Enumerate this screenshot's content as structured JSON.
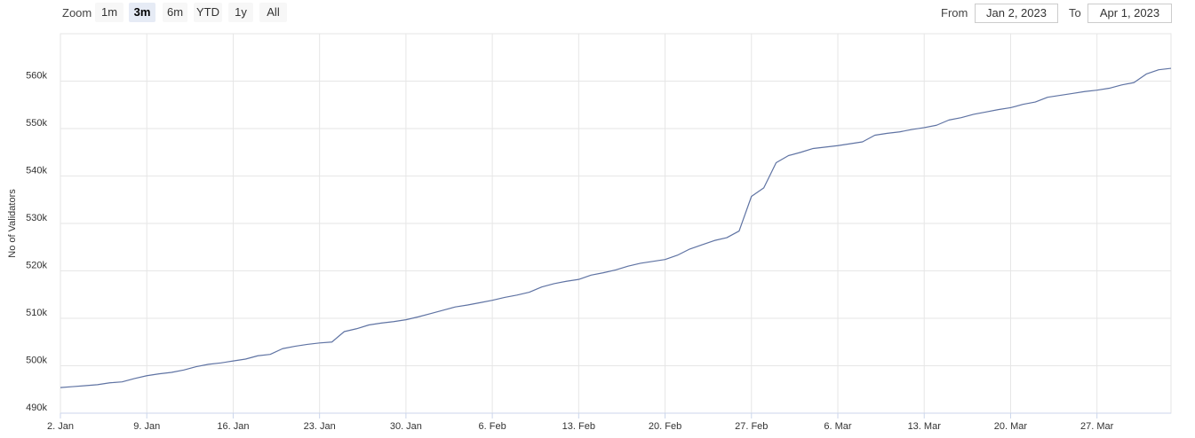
{
  "range_selector": {
    "label": "Zoom",
    "buttons": [
      "1m",
      "3m",
      "6m",
      "YTD",
      "1y",
      "All"
    ],
    "selected": 1,
    "from_label": "From",
    "from": "Jan 2, 2023",
    "to_label": "To",
    "to": "Apr 1, 2023"
  },
  "chart_data": {
    "type": "line",
    "y_label": "No of Validators",
    "color": "#5f73a3",
    "grid": true,
    "categories": [
      "2. Jan",
      null,
      null,
      null,
      null,
      null,
      null,
      "9. Jan",
      null,
      null,
      null,
      null,
      null,
      null,
      "16. Jan",
      null,
      null,
      null,
      null,
      null,
      null,
      "23. Jan",
      null,
      null,
      null,
      null,
      null,
      null,
      "30. Jan",
      null,
      null,
      null,
      null,
      null,
      null,
      "6. Feb",
      null,
      null,
      null,
      null,
      null,
      null,
      "13. Feb",
      null,
      null,
      null,
      null,
      null,
      null,
      "20. Feb",
      null,
      null,
      null,
      null,
      null,
      null,
      "27. Feb",
      null,
      null,
      null,
      null,
      null,
      null,
      "6. Mar",
      null,
      null,
      null,
      null,
      null,
      null,
      "13. Mar",
      null,
      null,
      null,
      null,
      null,
      null,
      "20. Mar",
      null,
      null,
      null,
      null,
      null,
      null,
      "27. Mar",
      null,
      null,
      null,
      null,
      null,
      null
    ],
    "values": [
      495400,
      495600,
      495800,
      496000,
      496400,
      496600,
      497300,
      497900,
      498300,
      498600,
      499100,
      499800,
      500300,
      500600,
      501000,
      501400,
      502100,
      502400,
      503600,
      504100,
      504500,
      504800,
      505000,
      507200,
      507800,
      508600,
      509000,
      509300,
      509700,
      510300,
      511000,
      511700,
      512400,
      512800,
      513300,
      513800,
      514400,
      514900,
      515500,
      516600,
      517300,
      517800,
      518200,
      519100,
      519600,
      520200,
      521000,
      521600,
      522000,
      522400,
      523300,
      524600,
      525500,
      526400,
      527000,
      528400,
      535700,
      537500,
      542800,
      544300,
      545000,
      545800,
      546100,
      546400,
      546800,
      547200,
      548600,
      549000,
      549300,
      549800,
      550200,
      550700,
      551800,
      552300,
      553000,
      553500,
      554000,
      554400,
      555100,
      555600,
      556600,
      557000,
      557400,
      557800,
      558100,
      558500,
      559200,
      559700,
      561500,
      562400,
      562700
    ],
    "ylim": [
      490000,
      570000
    ],
    "yticks": [
      {
        "value": 490000,
        "label": "490k"
      },
      {
        "value": 500000,
        "label": "500k"
      },
      {
        "value": 510000,
        "label": "510k"
      },
      {
        "value": 520000,
        "label": "520k"
      },
      {
        "value": 530000,
        "label": "530k"
      },
      {
        "value": 540000,
        "label": "540k"
      },
      {
        "value": 550000,
        "label": "550k"
      },
      {
        "value": 560000,
        "label": "560k"
      }
    ]
  }
}
